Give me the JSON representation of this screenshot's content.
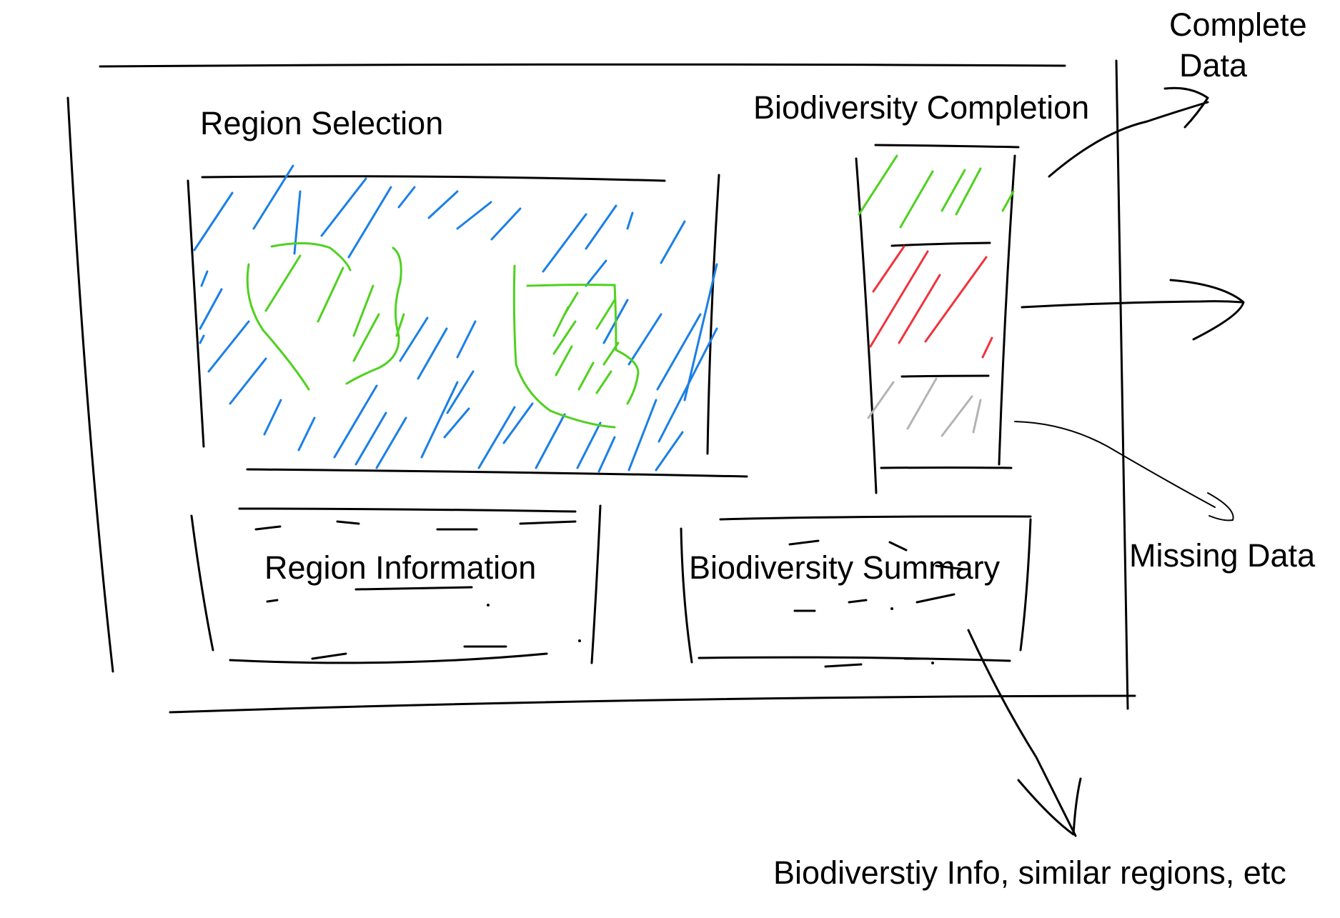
{
  "labels": {
    "region_selection": "Region Selection",
    "biodiversity_completion": "Biodiversity Completion",
    "complete_data_line1": "Complete",
    "complete_data_line2": "Data",
    "region_information": "Region Information",
    "biodiversity_summary": "Biodiversity Summary",
    "missing_data": "Missing Data",
    "biodiversity_info_note": "Biodiverstiy Info, similar regions, etc"
  },
  "colors": {
    "ink": "#000000",
    "map_water": "#1a7fe6",
    "map_land": "#4fd11f",
    "complete": "#4fd11f",
    "missing": "#f0323c",
    "unknown": "#b3b3b3"
  }
}
